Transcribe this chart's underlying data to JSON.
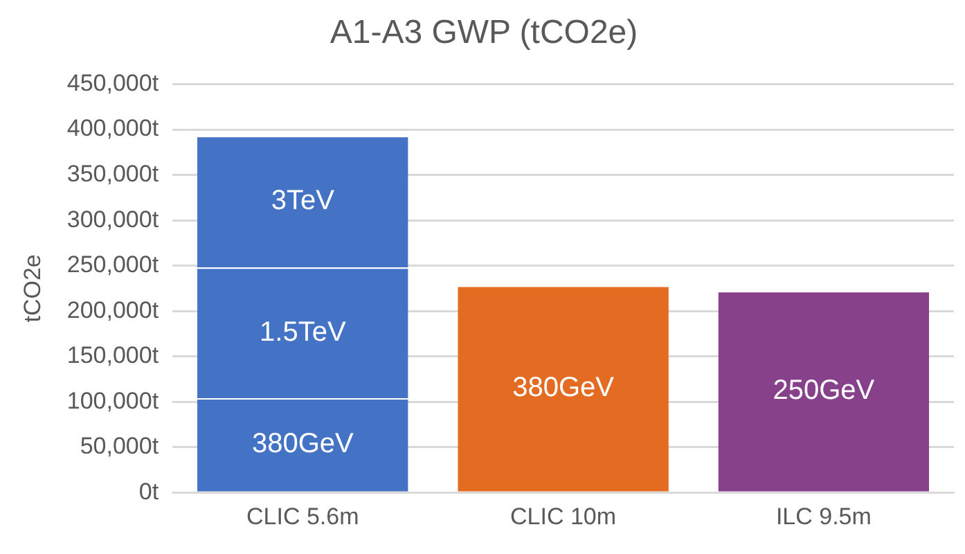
{
  "chart_data": {
    "type": "bar",
    "title": "A1-A3 GWP (tCO2e)",
    "ylabel": "tCO2e",
    "stacked": true,
    "categories": [
      "CLIC 5.6m",
      "CLIC 10m",
      "ILC 9.5m"
    ],
    "series": [
      {
        "name": "380GeV",
        "colors": [
          "#4472c4",
          "#e46c22",
          "#87418a"
        ],
        "values": [
          104000,
          228000,
          null
        ]
      },
      {
        "name": "1.5TeV",
        "color": "#4472c4",
        "values": [
          144000,
          null,
          null
        ]
      },
      {
        "name": "3TeV",
        "color": "#4472c4",
        "values": [
          145000,
          null,
          null
        ]
      },
      {
        "name": "250GeV",
        "color": "#87418a",
        "values": [
          null,
          null,
          222000
        ]
      }
    ],
    "ylim": [
      0,
      450000
    ],
    "yticks": [
      {
        "value": 0,
        "label": "0t"
      },
      {
        "value": 50000,
        "label": "50,000t"
      },
      {
        "value": 100000,
        "label": "100,000t"
      },
      {
        "value": 150000,
        "label": "150,000t"
      },
      {
        "value": 200000,
        "label": "200,000t"
      },
      {
        "value": 250000,
        "label": "250,000t"
      },
      {
        "value": 300000,
        "label": "300,000t"
      },
      {
        "value": 350000,
        "label": "350,000t"
      },
      {
        "value": 400000,
        "label": "400,000t"
      },
      {
        "value": 450000,
        "label": "450,000t"
      }
    ],
    "grid": "y",
    "legend": false
  }
}
